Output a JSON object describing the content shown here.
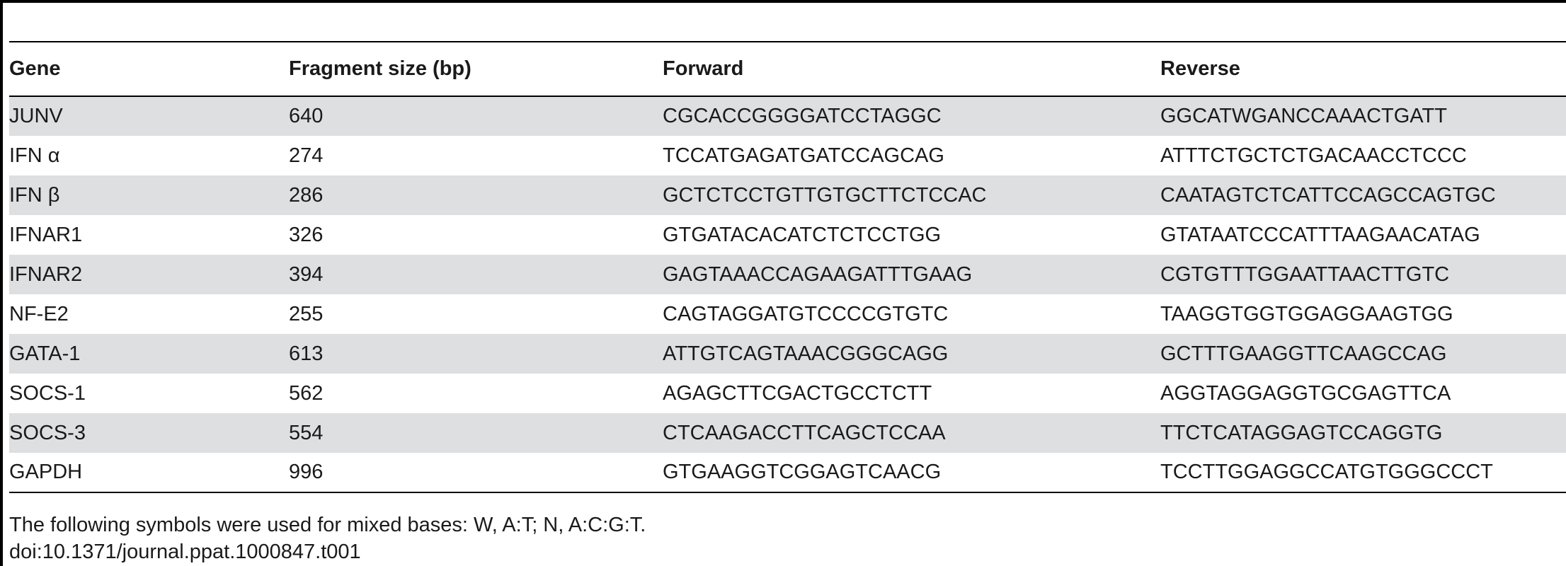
{
  "table": {
    "headers": [
      "Gene",
      "Fragment size (bp)",
      "Forward",
      "Reverse"
    ],
    "rows": [
      {
        "gene": "JUNV",
        "size": "640",
        "forward": "CGCACCGGGGATCCTAGGC",
        "reverse": "GGCATWGANCCAAACTGATT"
      },
      {
        "gene": "IFN α",
        "size": "274",
        "forward": "TCCATGAGATGATCCAGCAG",
        "reverse": "ATTTCTGCTCTGACAACCTCCC"
      },
      {
        "gene": "IFN β",
        "size": "286",
        "forward": "GCTCTCCTGTTGTGCTTCTCCAC",
        "reverse": "CAATAGTCTCATTCCAGCCAGTGC"
      },
      {
        "gene": "IFNAR1",
        "size": "326",
        "forward": "GTGATACACATCTCTCCTGG",
        "reverse": "GTATAATCCCATTTAAGAACATAG"
      },
      {
        "gene": "IFNAR2",
        "size": "394",
        "forward": "GAGTAAACCAGAAGATTTGAAG",
        "reverse": "CGTGTTTGGAATTAACTTGTC"
      },
      {
        "gene": "NF-E2",
        "size": "255",
        "forward": "CAGTAGGATGTCCCCGTGTC",
        "reverse": "TAAGGTGGTGGAGGAAGTGG"
      },
      {
        "gene": "GATA-1",
        "size": "613",
        "forward": "ATTGTCAGTAAACGGGCAGG",
        "reverse": "GCTTTGAAGGTTCAAGCCAG"
      },
      {
        "gene": "SOCS-1",
        "size": "562",
        "forward": "AGAGCTTCGACTGCCTCTT",
        "reverse": "AGGTAGGAGGTGCGAGTTCA"
      },
      {
        "gene": "SOCS-3",
        "size": "554",
        "forward": "CTCAAGACCTTCAGCTCCAA",
        "reverse": "TTCTCATAGGAGTCCAGGTG"
      },
      {
        "gene": "GAPDH",
        "size": "996",
        "forward": "GTGAAGGTCGGAGTCAACG",
        "reverse": "TCCTTGGAGGCCATGTGGGCCCT"
      }
    ]
  },
  "footnotes": {
    "symbols_note": "The following symbols were used for mixed bases: W, A:T; N, A:C:G:T.",
    "doi": "doi:10.1371/journal.ppat.1000847.t001"
  }
}
